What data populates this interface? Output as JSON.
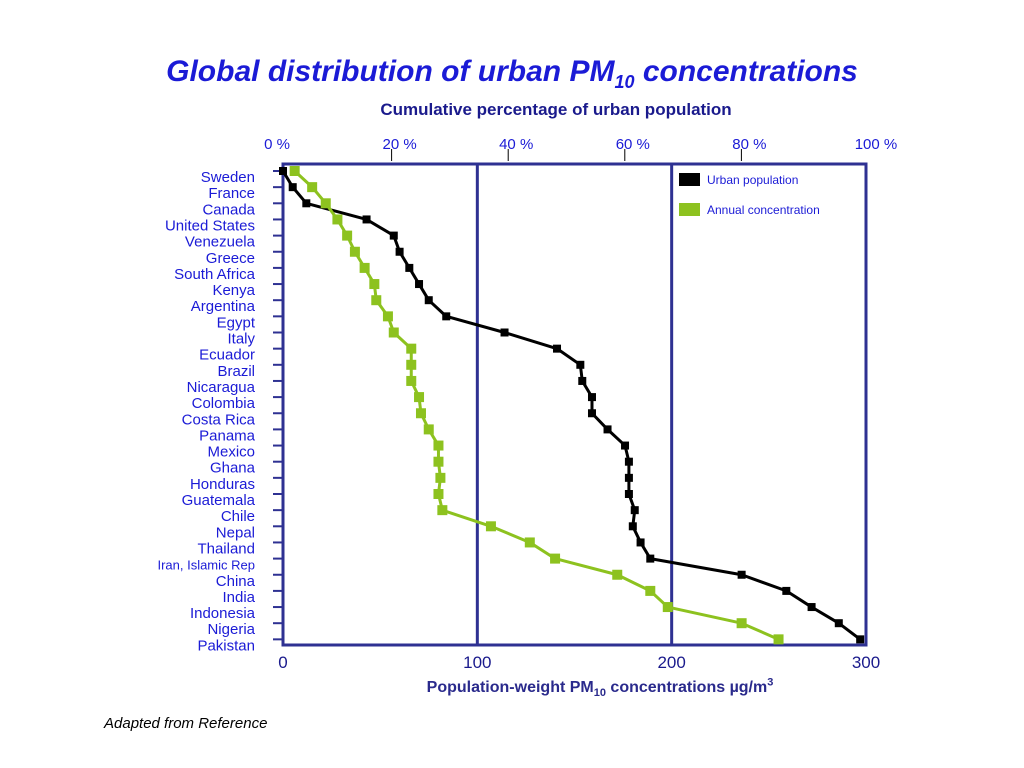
{
  "title": {
    "main": "Global distribution of urban PM",
    "sub": "10",
    "tail": " concentrations"
  },
  "x2label": "Cumulative percentage of urban population",
  "xlabel": {
    "pre": "Population-weight PM",
    "sub": "10",
    "post": " concentrations ",
    "unit_mu": "µ",
    "unit": "g/m",
    "unit_sup": "3"
  },
  "source_note": "Adapted from Reference",
  "colors": {
    "axis": "#2e3192",
    "urban": "#000000",
    "annual": "#8dc21f"
  },
  "chart_data": {
    "type": "line",
    "categories": [
      "Sweden",
      "France",
      "Canada",
      "United States",
      "Venezuela",
      "Greece",
      "South Africa",
      "Kenya",
      "Argentina",
      "Egypt",
      "Italy",
      "Ecuador",
      "Brazil",
      "Nicaragua",
      "Colombia",
      "Costa Rica",
      "Panama",
      "Mexico",
      "Ghana",
      "Honduras",
      "Guatemala",
      "Chile",
      "Nepal",
      "Thailand",
      "Iran, Islamic Rep",
      "China",
      "India",
      "Indonesia",
      "Nigeria",
      "Pakistan"
    ],
    "xlim": [
      0,
      300
    ],
    "xticks": [
      0,
      100,
      200,
      300
    ],
    "x2ticks": [
      "0 %",
      "20 %",
      "40 %",
      "60 %",
      "80 %",
      "100 %"
    ],
    "legend_position": "top-right",
    "series": [
      {
        "name": "Urban population",
        "color": "#000000",
        "points": [
          {
            "x": 0,
            "y": 0
          },
          {
            "x": 5,
            "y": 1
          },
          {
            "x": 12,
            "y": 2
          },
          {
            "x": 43,
            "y": 3
          },
          {
            "x": 57,
            "y": 4
          },
          {
            "x": 60,
            "y": 5
          },
          {
            "x": 65,
            "y": 6
          },
          {
            "x": 70,
            "y": 7
          },
          {
            "x": 75,
            "y": 8
          },
          {
            "x": 84,
            "y": 9
          },
          {
            "x": 114,
            "y": 10
          },
          {
            "x": 141,
            "y": 11
          },
          {
            "x": 153,
            "y": 12
          },
          {
            "x": 154,
            "y": 13
          },
          {
            "x": 159,
            "y": 14
          },
          {
            "x": 159,
            "y": 15
          },
          {
            "x": 167,
            "y": 16
          },
          {
            "x": 176,
            "y": 17
          },
          {
            "x": 178,
            "y": 18
          },
          {
            "x": 178,
            "y": 19
          },
          {
            "x": 178,
            "y": 20
          },
          {
            "x": 181,
            "y": 21
          },
          {
            "x": 180,
            "y": 22
          },
          {
            "x": 184,
            "y": 23
          },
          {
            "x": 189,
            "y": 24
          },
          {
            "x": 236,
            "y": 25
          },
          {
            "x": 259,
            "y": 26
          },
          {
            "x": 272,
            "y": 27
          },
          {
            "x": 286,
            "y": 28
          },
          {
            "x": 297,
            "y": 29
          }
        ]
      },
      {
        "name": "Annual concentration",
        "color": "#8dc21f",
        "points": [
          {
            "x": 6,
            "y": 0
          },
          {
            "x": 15,
            "y": 1
          },
          {
            "x": 22,
            "y": 2
          },
          {
            "x": 28,
            "y": 3
          },
          {
            "x": 33,
            "y": 4
          },
          {
            "x": 37,
            "y": 5
          },
          {
            "x": 42,
            "y": 6
          },
          {
            "x": 47,
            "y": 7
          },
          {
            "x": 48,
            "y": 8
          },
          {
            "x": 54,
            "y": 9
          },
          {
            "x": 57,
            "y": 10
          },
          {
            "x": 66,
            "y": 11
          },
          {
            "x": 66,
            "y": 12
          },
          {
            "x": 66,
            "y": 13
          },
          {
            "x": 70,
            "y": 14
          },
          {
            "x": 71,
            "y": 15
          },
          {
            "x": 75,
            "y": 16
          },
          {
            "x": 80,
            "y": 17
          },
          {
            "x": 80,
            "y": 18
          },
          {
            "x": 81,
            "y": 19
          },
          {
            "x": 80,
            "y": 20
          },
          {
            "x": 82,
            "y": 21
          },
          {
            "x": 107,
            "y": 22
          },
          {
            "x": 127,
            "y": 23
          },
          {
            "x": 140,
            "y": 24
          },
          {
            "x": 172,
            "y": 25
          },
          {
            "x": 189,
            "y": 26
          },
          {
            "x": 198,
            "y": 27
          },
          {
            "x": 236,
            "y": 28
          },
          {
            "x": 255,
            "y": 29
          }
        ]
      }
    ]
  }
}
